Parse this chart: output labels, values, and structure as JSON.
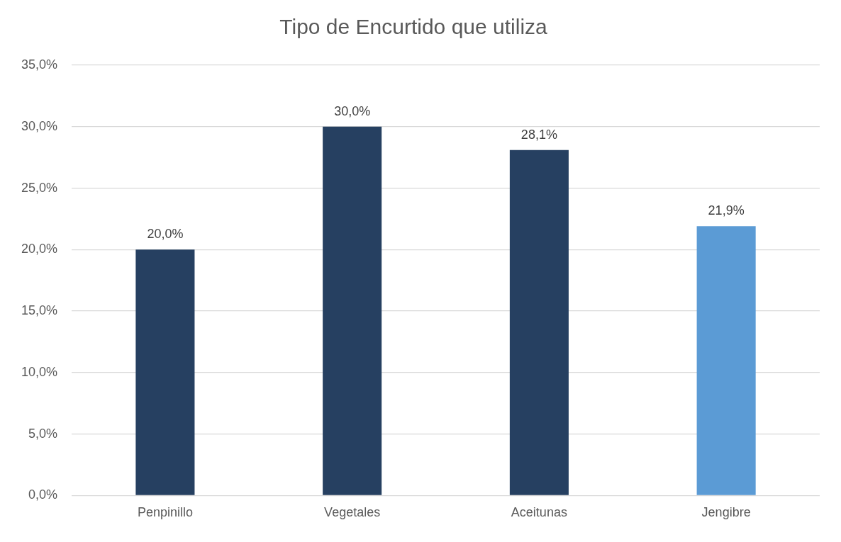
{
  "chart_data": {
    "type": "bar",
    "title": "Tipo de Encurtido que utiliza",
    "categories": [
      "Penpinillo",
      "Vegetales",
      "Aceitunas",
      "Jengibre"
    ],
    "values": [
      20.0,
      30.0,
      28.1,
      21.9
    ],
    "colors": [
      "#264061",
      "#264061",
      "#264061",
      "#5b9bd5"
    ],
    "value_labels": [
      "20,0%",
      "30,0%",
      "28,1%",
      "21,9%"
    ],
    "ylim": [
      0,
      35
    ],
    "yticks": [
      {
        "value": 0,
        "label": "0,0%"
      },
      {
        "value": 5,
        "label": "5,0%"
      },
      {
        "value": 10,
        "label": "10,0%"
      },
      {
        "value": 15,
        "label": "15,0%"
      },
      {
        "value": 20,
        "label": "20,0%"
      },
      {
        "value": 25,
        "label": "25,0%"
      },
      {
        "value": 30,
        "label": "30,0%"
      },
      {
        "value": 35,
        "label": "35,0%"
      }
    ],
    "grid": "y",
    "legend": false
  }
}
